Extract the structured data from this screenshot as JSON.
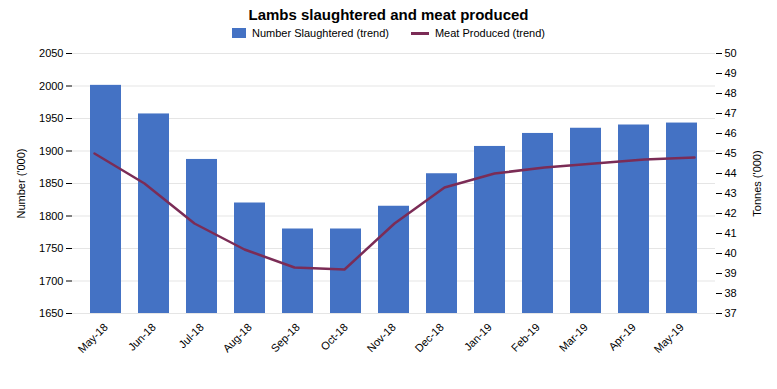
{
  "chart_data": {
    "type": "bar",
    "title": "Lambs slaughtered and meat produced",
    "categories": [
      "May-18",
      "Jun-18",
      "Jul-18",
      "Aug-18",
      "Sep-18",
      "Oct-18",
      "Nov-18",
      "Dec-18",
      "Jan-19",
      "Feb-19",
      "Mar-19",
      "Apr-19",
      "May-19"
    ],
    "series": [
      {
        "name": "Number Slaughtered (trend)",
        "type": "bar",
        "color": "#4472C4",
        "values": [
          2001,
          1957,
          1887,
          1820,
          1780,
          1780,
          1815,
          1865,
          1907,
          1927,
          1935,
          1940,
          1943
        ]
      },
      {
        "name": "Meat Produced (trend)",
        "type": "line",
        "axis": "y2",
        "color": "#7B2C56",
        "values": [
          45.0,
          43.5,
          41.5,
          40.2,
          39.3,
          39.2,
          41.5,
          43.3,
          44.0,
          44.3,
          44.5,
          44.7,
          44.8
        ]
      }
    ],
    "ylabel": "Number ('000)",
    "y2label": "Tonnes ('000)",
    "ylim": [
      1650,
      2050
    ],
    "yticks": [
      1650,
      1700,
      1750,
      1800,
      1850,
      1900,
      1950,
      2000,
      2050
    ],
    "y2lim": [
      37,
      50
    ],
    "y2ticks": [
      37,
      38,
      39,
      40,
      41,
      42,
      43,
      44,
      45,
      46,
      47,
      48,
      49,
      50
    ],
    "grid": true,
    "legend": "top"
  }
}
